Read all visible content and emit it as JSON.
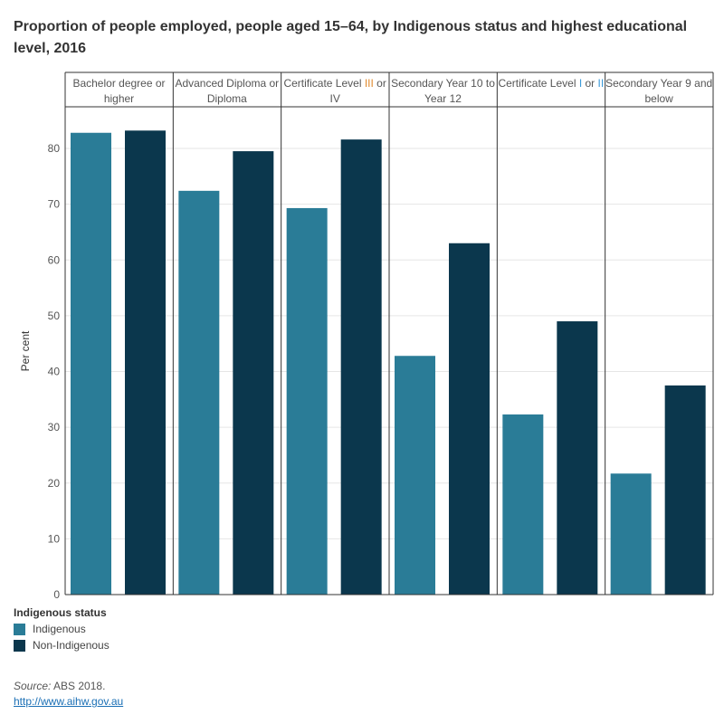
{
  "title": "Proportion of people employed, people aged 15–64, by Indigenous status and highest educational level, 2016",
  "chart_data": {
    "type": "bar",
    "title": "Proportion of people employed, people aged 15–64, by Indigenous status and highest educational level, 2016",
    "ylabel": "Per cent",
    "xlabel": "",
    "ylim": [
      0,
      87
    ],
    "yticks": [
      "0",
      "10",
      "20",
      "30",
      "40",
      "50",
      "60",
      "70",
      "80"
    ],
    "categories": [
      "Bachelor degree or higher",
      "Advanced Diploma or Diploma",
      "Certificate Level III or IV",
      "Secondary Year 10 to Year 12",
      "Certificate Level I or II",
      "Secondary Year 9 and below"
    ],
    "category_parts": [
      [
        [
          "Bachelor degree or higher",
          ""
        ]
      ],
      [
        [
          "Advanced Diploma or Diploma",
          ""
        ]
      ],
      [
        [
          "Certificate Level ",
          ""
        ],
        [
          "III",
          "#e08a2e"
        ],
        [
          " or IV",
          ""
        ]
      ],
      [
        [
          "Secondary Year 10 to Year 12",
          ""
        ]
      ],
      [
        [
          "Certificate Level ",
          ""
        ],
        [
          "I",
          "#3a9ad9"
        ],
        [
          " or ",
          ""
        ],
        [
          "II",
          "#3a9ad9"
        ]
      ],
      [
        [
          "Secondary Year 9 and below",
          ""
        ]
      ]
    ],
    "series": [
      {
        "name": "Indigenous",
        "color": "#2a7c97",
        "values": [
          82.8,
          72.4,
          69.3,
          42.8,
          32.3,
          21.7
        ]
      },
      {
        "name": "Non-Indigenous",
        "color": "#0b374d",
        "values": [
          83.2,
          79.5,
          81.6,
          63.0,
          49.0,
          37.5
        ]
      }
    ],
    "legend_title": "Indigenous status",
    "legend_position": "bottom-left",
    "grid": true
  },
  "source": {
    "label": "Source:",
    "text": " ABS 2018.",
    "link": "http://www.aihw.gov.au"
  }
}
